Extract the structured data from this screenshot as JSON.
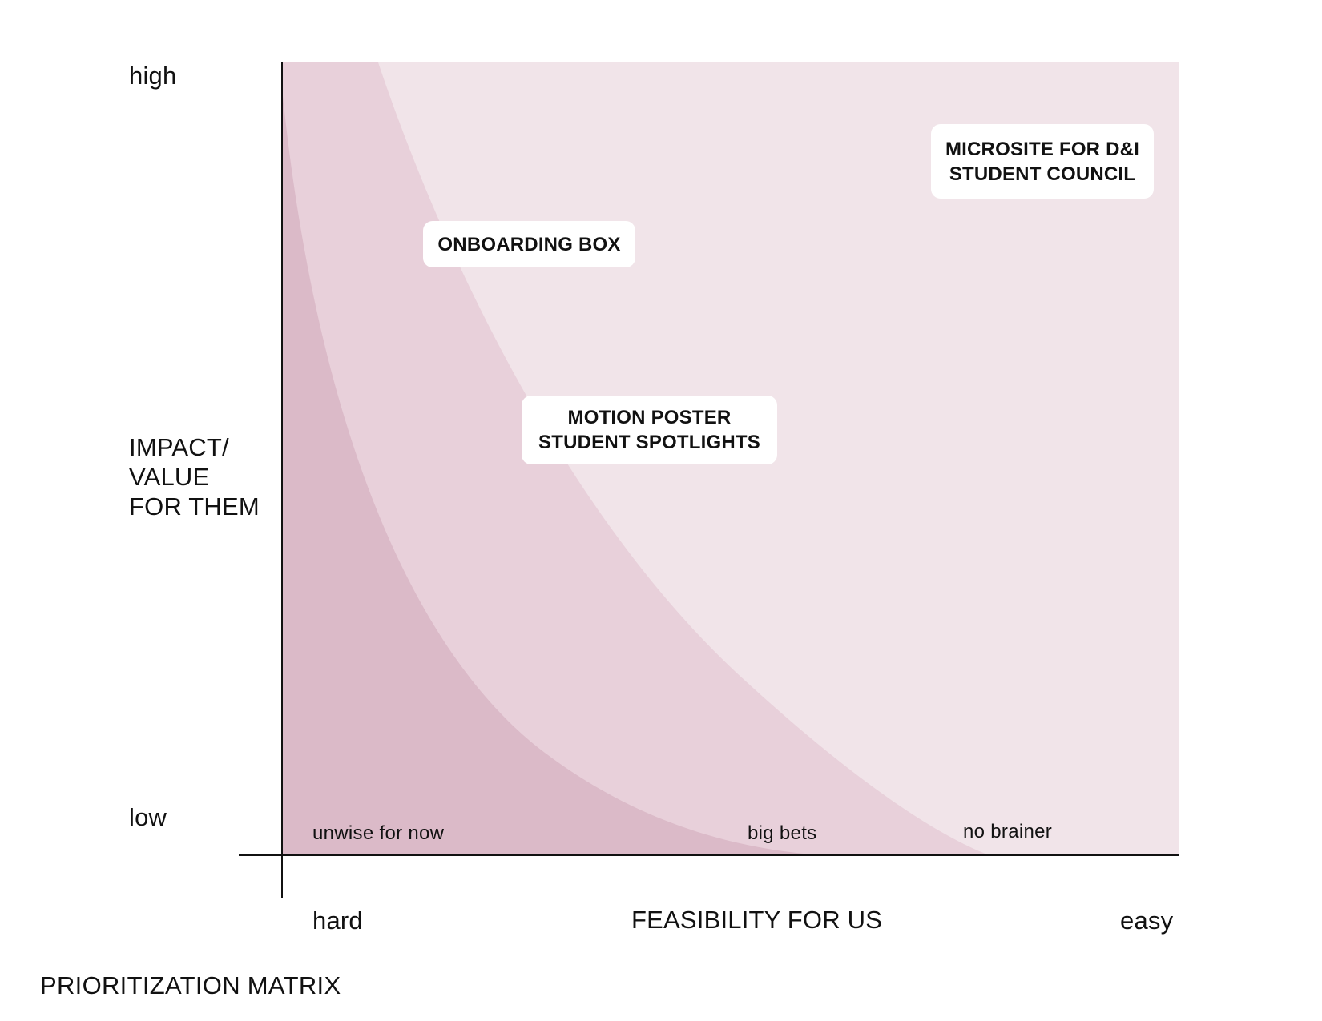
{
  "title": "PRIORITIZATION MATRIX",
  "y_axis": {
    "name": "IMPACT/\nVALUE\nFOR THEM",
    "high": "high",
    "low": "low"
  },
  "x_axis": {
    "name": "FEASIBILITY FOR US",
    "start": "hard",
    "end": "easy"
  },
  "zones": [
    {
      "label": "unwise for now",
      "color": "#dbbac8"
    },
    {
      "label": "big bets",
      "color": "#e8d0da"
    },
    {
      "label": "no brainer",
      "color": "#f1e4e9"
    }
  ],
  "items": [
    {
      "lines": [
        "ONBOARDING BOX"
      ],
      "zone": "big bets"
    },
    {
      "lines": [
        "MOTION POSTER",
        "STUDENT SPOTLIGHTS"
      ],
      "zone": "big bets"
    },
    {
      "lines": [
        "MICROSITE FOR D&I",
        "STUDENT COUNCIL"
      ],
      "zone": "no brainer"
    }
  ]
}
